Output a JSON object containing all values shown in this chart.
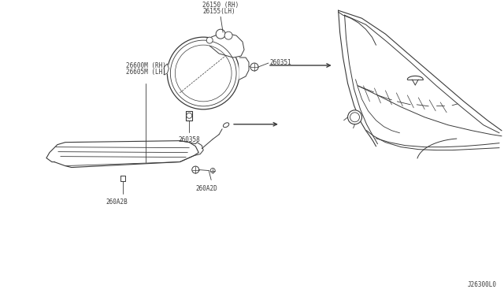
{
  "bg_color": "#ffffff",
  "diagram_id": "J26300L0",
  "labels": {
    "top_lamp_label1": "26600M (RH)",
    "top_lamp_label2": "26605M (LH)",
    "screw1_label": "260A2D",
    "screw2_label": "260A2B",
    "fog_lamp_label1": "26150 (RH)",
    "fog_lamp_label2": "26155(LH)",
    "bracket_label": "260358",
    "bolt_label": "260351"
  },
  "line_color": "#3a3a3a",
  "text_color": "#3a3a3a",
  "font_size": 5.5
}
